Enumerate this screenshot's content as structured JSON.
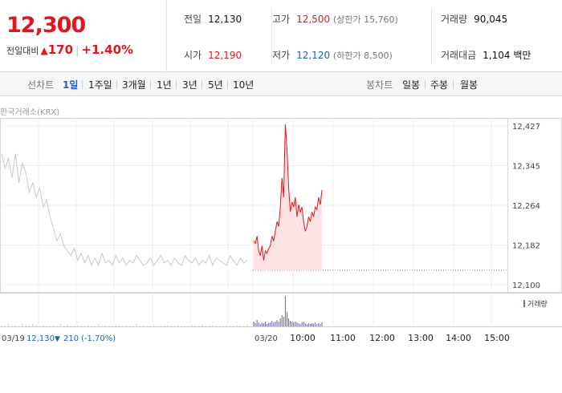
{
  "quote": {
    "price": "12,300",
    "change_label": "전일대비",
    "change_arrow": "▲",
    "change_value": "170",
    "change_pct": "+1.40%"
  },
  "stats": {
    "prev_close": {
      "label": "전일",
      "value": "12,130"
    },
    "open": {
      "label": "시가",
      "value": "12,190"
    },
    "high": {
      "label": "고가",
      "value": "12,500",
      "sub": "(상한가 15,760)"
    },
    "low": {
      "label": "저가",
      "value": "12,120",
      "sub": "(하한가 8,500)"
    },
    "volume": {
      "label": "거래량",
      "value": "90,045"
    },
    "amount": {
      "label": "거래대금",
      "value": "1,104",
      "unit": "백만"
    }
  },
  "toolbar": {
    "line_label": "선차트",
    "line_ranges": [
      "1일",
      "1주일",
      "3개월",
      "1년",
      "3년",
      "5년",
      "10년"
    ],
    "active_range": "1일",
    "candle_label": "봉차트",
    "candle_ranges": [
      "일봉",
      "주봉",
      "월봉"
    ]
  },
  "chart": {
    "source": "한국거래소(KRX)",
    "volume_legend": "거래량",
    "prev_day_summary": {
      "date": "03/19",
      "price": "12,130",
      "arrow": "▼",
      "change": "210",
      "pct": "(-1.70%)"
    },
    "today_label": "03/20"
  },
  "chart_data": {
    "type": "line",
    "y_ticks": [
      "12,427",
      "12,345",
      "12,264",
      "12,182",
      "12,100"
    ],
    "ylim": [
      12100,
      12427
    ],
    "x_ticks": [
      "10:00",
      "11:00",
      "12:00",
      "13:00",
      "14:00",
      "15:00"
    ],
    "series": [
      {
        "name": "03/19",
        "color": "#c8c8c8",
        "values": [
          12370,
          12340,
          12360,
          12320,
          12370,
          12310,
          12350,
          12330,
          12290,
          12310,
          12280,
          12300,
          12260,
          12275,
          12240,
          12215,
          12190,
          12205,
          12180,
          12170,
          12160,
          12175,
          12150,
          12165,
          12145,
          12160,
          12140,
          12155,
          12140,
          12165,
          12145,
          12150,
          12140,
          12160,
          12145,
          12155,
          12140,
          12150,
          12145,
          12160,
          12150,
          12140,
          12145,
          12155,
          12140,
          12150,
          12160,
          12145,
          12150,
          12140,
          12155,
          12145,
          12140,
          12160,
          12150,
          12145,
          12155,
          12140,
          12150,
          12145,
          12160,
          12140,
          12155,
          12150,
          12145,
          12140,
          12160,
          12150,
          12140,
          12155,
          12145,
          12150
        ]
      },
      {
        "name": "03/20",
        "color": "#e2161d",
        "values": [
          12190,
          12185,
          12200,
          12170,
          12160,
          12180,
          12150,
          12170,
          12165,
          12175,
          12180,
          12200,
          12190,
          12210,
          12230,
          12220,
          12260,
          12320,
          12280,
          12430,
          12380,
          12300,
          12250,
          12270,
          12260,
          12280,
          12240,
          12265,
          12250,
          12260,
          12230,
          12210,
          12220,
          12240,
          12230,
          12250,
          12240,
          12260,
          12255,
          12280,
          12265,
          12295
        ]
      }
    ],
    "prev_close_line": 12130,
    "volume": {
      "prev_day": [
        2,
        1,
        3,
        1,
        2,
        1,
        4,
        2,
        1,
        3,
        2,
        1,
        2,
        1,
        1,
        2,
        1,
        3,
        1,
        2,
        1,
        1,
        2,
        1,
        1,
        2,
        1,
        1,
        3,
        1,
        2,
        1,
        1,
        2,
        1,
        1,
        2,
        1,
        1,
        3,
        1,
        2,
        1,
        1,
        2,
        1,
        1,
        1,
        2,
        1,
        1,
        2,
        1,
        1,
        1,
        2,
        1,
        1,
        2,
        1,
        1,
        2,
        1,
        1,
        1,
        2,
        1,
        1,
        2,
        1,
        1,
        2
      ],
      "today": [
        6,
        4,
        8,
        5,
        3,
        5,
        4,
        6,
        3,
        4,
        5,
        7,
        5,
        6,
        8,
        6,
        10,
        14,
        12,
        38,
        18,
        10,
        7,
        6,
        5,
        6,
        5,
        4,
        3,
        5,
        6,
        4,
        3,
        4,
        3,
        4,
        3,
        5,
        3,
        4,
        3,
        5
      ]
    }
  }
}
